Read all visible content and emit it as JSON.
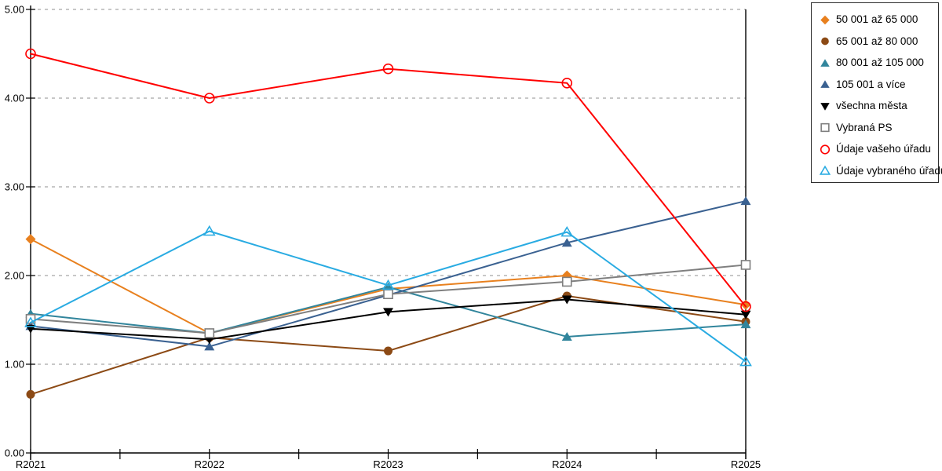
{
  "chart_data": {
    "type": "line",
    "title": "",
    "xlabel": "",
    "ylabel": "",
    "categories": [
      "R2021",
      "R2022",
      "R2023",
      "R2024",
      "R2025"
    ],
    "ylim": [
      0,
      5
    ],
    "y_ticks": [
      "0.00",
      "1.00",
      "2.00",
      "3.00",
      "4.00",
      "5.00"
    ],
    "grid": "horizontal-dotted",
    "legend_position": "outside-top-right",
    "axis_color": "#000000",
    "gridline_color": "#a6a6a6",
    "series": [
      {
        "name": "50 001 až 65 000",
        "color": "#e8801e",
        "marker": "diamond",
        "fill": "solid",
        "values": [
          2.41,
          1.35,
          1.85,
          2.0,
          1.67
        ]
      },
      {
        "name": "65 001 až 80 000",
        "color": "#8c4a15",
        "marker": "circle",
        "fill": "solid",
        "values": [
          0.66,
          1.3,
          1.15,
          1.77,
          1.48
        ]
      },
      {
        "name": "80 001 až 105 000",
        "color": "#31859c",
        "marker": "triangle-up",
        "fill": "solid",
        "values": [
          1.57,
          1.35,
          1.87,
          1.31,
          1.45
        ]
      },
      {
        "name": "105 001 a více",
        "color": "#3a6191",
        "marker": "triangle-up",
        "fill": "solid",
        "values": [
          1.43,
          1.2,
          1.78,
          2.37,
          2.84
        ]
      },
      {
        "name": "všechna města",
        "color": "#000000",
        "marker": "triangle-down",
        "fill": "solid",
        "values": [
          1.4,
          1.28,
          1.59,
          1.73,
          1.56
        ]
      },
      {
        "name": "Vybraná PS",
        "color": "#7f7f7f",
        "marker": "square",
        "fill": "open",
        "values": [
          1.51,
          1.35,
          1.79,
          1.93,
          2.12
        ]
      },
      {
        "name": "Údaje vašeho úřadu",
        "color": "#ff0000",
        "marker": "circle",
        "fill": "open",
        "values": [
          4.5,
          4.0,
          4.33,
          4.17,
          1.65
        ]
      },
      {
        "name": "Údaje vybraného úřadu",
        "color": "#29abe2",
        "marker": "triangle-up",
        "fill": "open",
        "values": [
          1.47,
          2.5,
          1.89,
          2.49,
          1.03
        ]
      }
    ]
  }
}
